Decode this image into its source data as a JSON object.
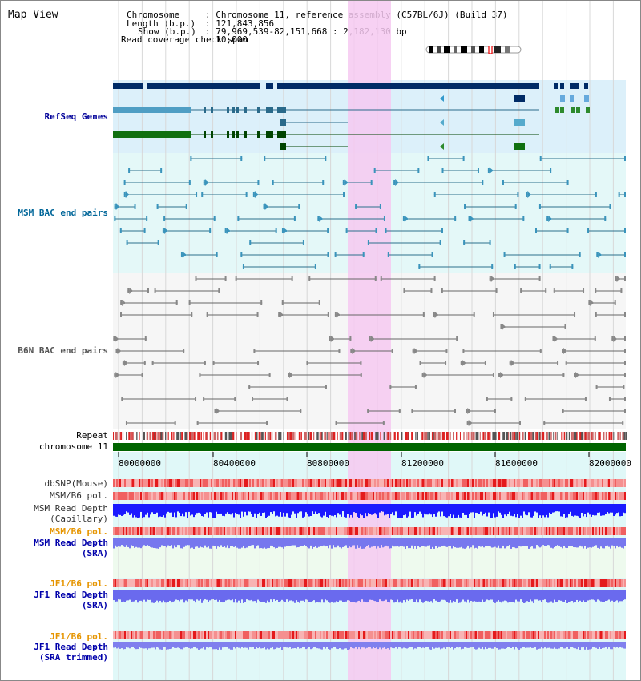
{
  "title": "Map View",
  "header": {
    "chromosome_label": "Chromosome",
    "chromosome_value": ": Chromosome 11, reference assembly (C57BL/6J) (Build 37)",
    "length_label": "Length (b.p.)",
    "length_value": ": 121,843,856",
    "show_label": "Show (b.p.)",
    "show_value": ": 79,969,539-82,151,668 : 2,182,130 bp",
    "coverage_label": "Read coverage check span",
    "coverage_value": ": 10,000"
  },
  "tracks": {
    "refseq": "RefSeq Genes",
    "msm_bac": "MSM BAC end pairs",
    "b6n_bac": "B6N BAC end pairs",
    "repeat": "Repeat",
    "chromosome": "chromosome 11",
    "dbsnp": "dbSNP(Mouse)",
    "msm_b6_pol_1": "MSM/B6 pol.",
    "msm_depth_cap_1": "MSM Read Depth",
    "msm_depth_cap_2": "(Capillary)",
    "msm_b6_pol_2": "MSM/B6 pol.",
    "msm_depth_sra_1": "MSM Read Depth",
    "msm_depth_sra_2": "(SRA)",
    "jf1_b6_pol_1": "JF1/B6 pol.",
    "jf1_depth_sra_1": "JF1 Read Depth",
    "jf1_depth_sra_2": "(SRA)",
    "jf1_b6_pol_2": "JF1/B6 pol.",
    "jf1_depth_trim_1": "JF1 Read Depth",
    "jf1_depth_trim_2": "(SRA trimmed)"
  },
  "axis": {
    "ticks": [
      "80000000",
      "80400000",
      "80800000",
      "81200000",
      "81600000",
      "82000000"
    ]
  },
  "colors": {
    "refseq_label": "#000099",
    "msm_bac_label": "#006699",
    "b6n_bac_label": "#555555",
    "msm_pol_label": "#333333",
    "orange_label": "#e69500",
    "depth_label": "#0000aa",
    "highlight": "#f6c9f1"
  }
}
